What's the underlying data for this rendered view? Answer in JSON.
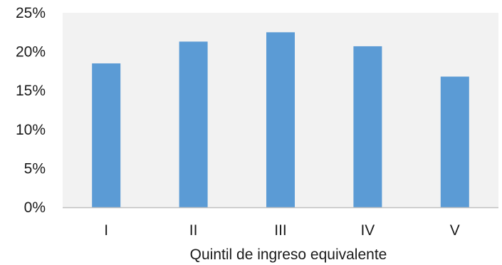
{
  "chart_data": {
    "type": "bar",
    "categories": [
      "I",
      "II",
      "III",
      "IV",
      "V"
    ],
    "values": [
      18.5,
      21.3,
      22.5,
      20.7,
      16.8
    ],
    "xlabel": "Quintil de ingreso equivalente",
    "ylabel": "",
    "ylim": [
      0,
      25
    ],
    "yticks": [
      0,
      5,
      10,
      15,
      20,
      25
    ],
    "ytick_labels": [
      "0%",
      "5%",
      "10%",
      "15%",
      "20%",
      "25%"
    ],
    "grid": false,
    "legend": "none",
    "bar_color": "#5b9bd5",
    "plot_background": "#f2f2f2",
    "axis_color": "#bfbfbf"
  }
}
